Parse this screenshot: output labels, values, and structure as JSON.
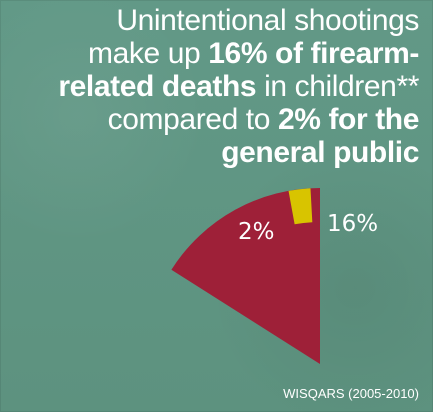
{
  "headline": {
    "line1": "Unintentional shootings",
    "line2_prefix": "make up ",
    "line2_bold": "16% of firearm-",
    "line3_bold": "related deaths",
    "line3_suffix": " in children**",
    "line4_prefix": "compared to ",
    "line4_bold": "2% for the",
    "line5_bold": "general public"
  },
  "chart_data": {
    "type": "pie",
    "title": "",
    "slices": [
      {
        "name": "",
        "value": 2,
        "label": "2%",
        "color": "#d8c400"
      },
      {
        "name": "",
        "value": 16,
        "label": "16%",
        "color": "#9e2038"
      }
    ],
    "total": 100
  },
  "source": "WISQARS (2005-2010)"
}
